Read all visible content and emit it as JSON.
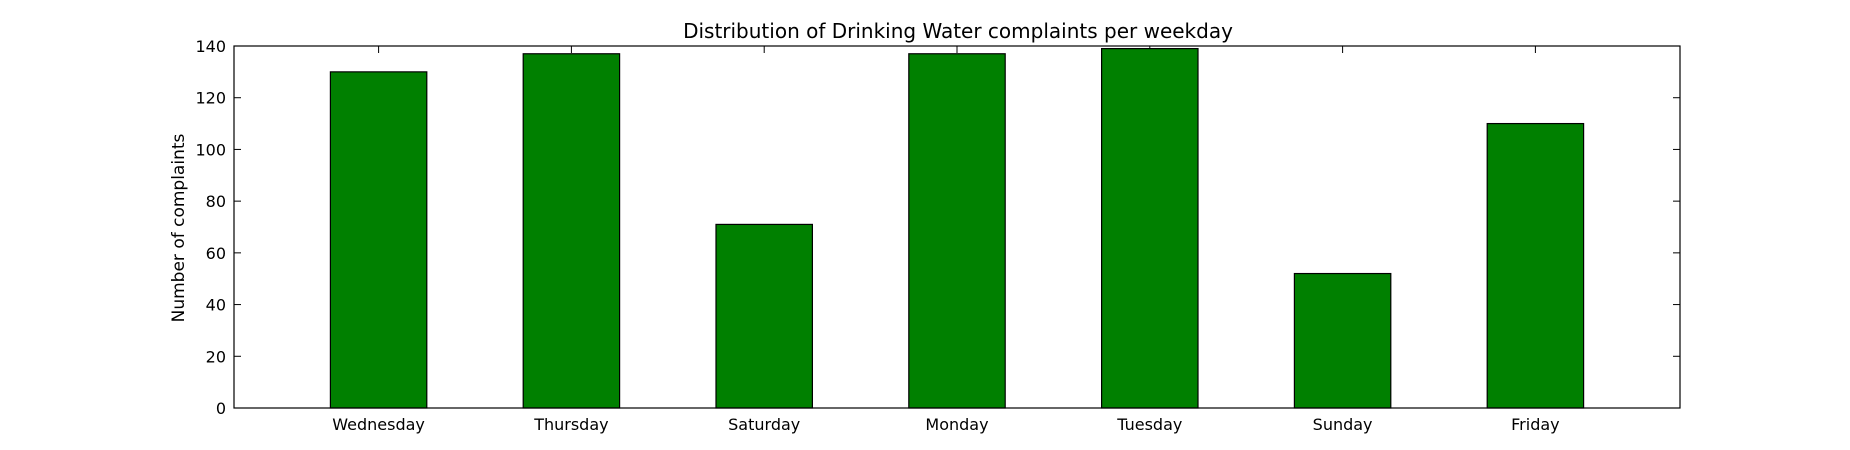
{
  "chart_data": {
    "type": "bar",
    "title": "Distribution of  Drinking Water complaints per weekday",
    "xlabel": "",
    "ylabel": "Number of complaints",
    "categories": [
      "Wednesday",
      "Thursday",
      "Saturday",
      "Monday",
      "Tuesday",
      "Sunday",
      "Friday"
    ],
    "values": [
      130,
      137,
      71,
      137,
      139,
      52,
      110
    ],
    "ylim": [
      0,
      140
    ],
    "yticks": [
      0,
      20,
      40,
      60,
      80,
      100,
      120,
      140
    ],
    "bar_color": "#008000",
    "edge_color": "#000000",
    "grid": false,
    "legend": "none"
  }
}
